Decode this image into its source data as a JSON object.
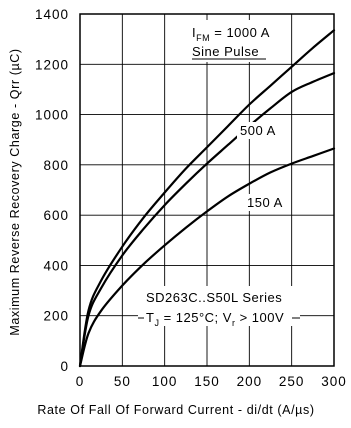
{
  "chart_data": {
    "type": "line",
    "title": "",
    "xlabel": "Rate Of Fall Of Forward Current - di/dt (A/µs)",
    "ylabel": "Maximum Reverse Recovery Charge - Qrr (µC)",
    "xlim": [
      0,
      300
    ],
    "ylim": [
      0,
      1400
    ],
    "xticks": [
      "0",
      "50",
      "100",
      "150",
      "200",
      "250",
      "300"
    ],
    "yticks": [
      "0",
      "200",
      "400",
      "600",
      "800",
      "1000",
      "1200",
      "1400"
    ],
    "grid": true,
    "series": [
      {
        "name": "1000 A",
        "x": [
          0,
          10,
          25,
          50,
          75,
          100,
          125,
          150,
          175,
          200,
          225,
          250,
          275,
          300
        ],
        "values": [
          0,
          220,
          340,
          475,
          590,
          690,
          785,
          870,
          955,
          1040,
          1115,
          1190,
          1265,
          1335
        ]
      },
      {
        "name": "500 A",
        "x": [
          0,
          10,
          25,
          50,
          75,
          100,
          125,
          150,
          175,
          200,
          225,
          250,
          275,
          300
        ],
        "values": [
          0,
          200,
          310,
          440,
          545,
          640,
          725,
          805,
          880,
          955,
          1025,
          1090,
          1130,
          1165
        ]
      },
      {
        "name": "150 A",
        "x": [
          0,
          10,
          25,
          50,
          75,
          100,
          125,
          150,
          175,
          200,
          225,
          250,
          275,
          300
        ],
        "values": [
          0,
          130,
          220,
          320,
          405,
          480,
          550,
          615,
          675,
          725,
          770,
          805,
          835,
          865
        ]
      }
    ],
    "annotations": {
      "line1_pre": "I",
      "line1_sub": "FM",
      "line1_post": " = 1000 A",
      "line2": "Sine Pulse",
      "label_500": "500 A",
      "label_150": "150 A",
      "series_label": "SD263C..S50L Series",
      "cond_tj": "T",
      "cond_tj_sub": "J",
      "cond_mid": " = 125°C; V",
      "cond_vr_sub": "r",
      "cond_end": " > 100V"
    }
  }
}
